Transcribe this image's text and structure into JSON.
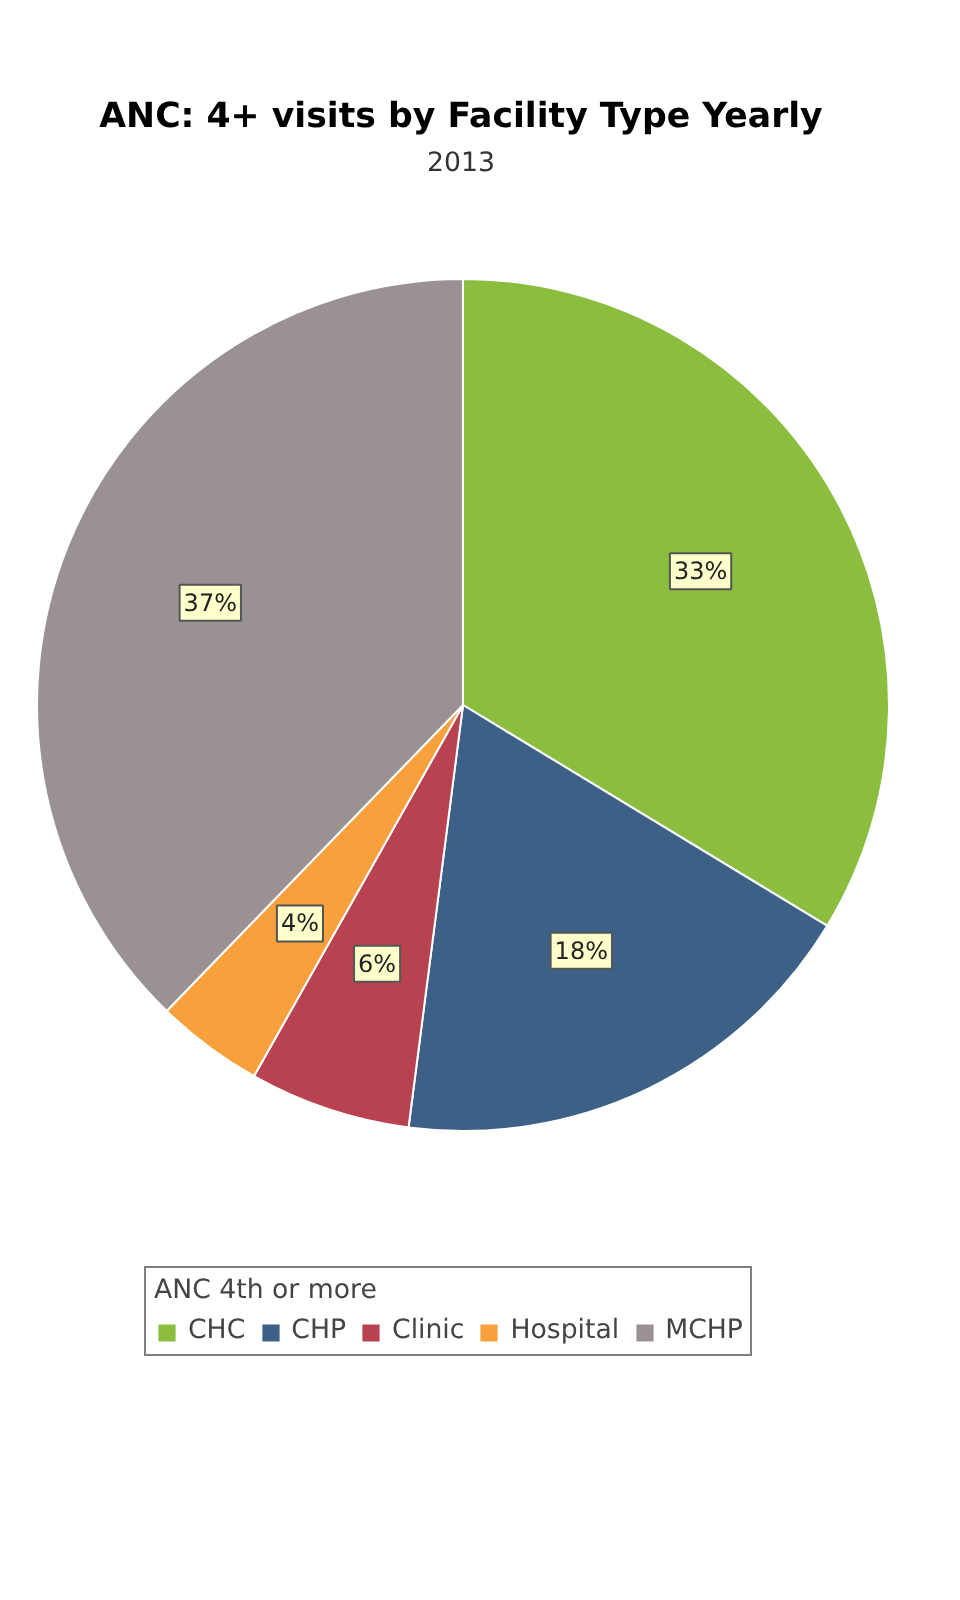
{
  "chart_data": {
    "type": "pie",
    "title": "ANC: 4+ visits by Facility Type Yearly",
    "subtitle": "2013",
    "legend_title": "ANC 4th or more",
    "categories": [
      "CHC",
      "CHP",
      "Clinic",
      "Hospital",
      "MCHP"
    ],
    "values": [
      33,
      18,
      6,
      4,
      37
    ],
    "colors": [
      "#8bbd3f",
      "#3d6186",
      "#b94250",
      "#f7a03c",
      "#9a9193"
    ],
    "value_labels": [
      "33%",
      "18%",
      "6%",
      "4%",
      "37%"
    ],
    "legend": "bottom"
  }
}
